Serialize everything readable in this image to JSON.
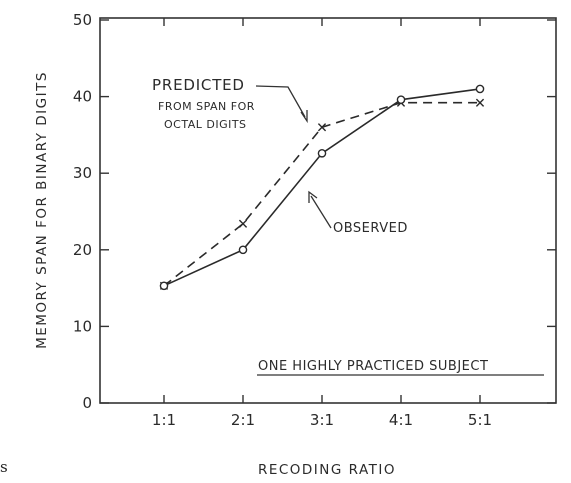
{
  "chart_data": {
    "type": "line",
    "xlabel": "RECODING RATIO",
    "ylabel": "MEMORY SPAN FOR BINARY DIGITS",
    "categories": [
      "1:1",
      "2:1",
      "3:1",
      "4:1",
      "5:1"
    ],
    "ylim": [
      0,
      50
    ],
    "yticks": [
      0,
      10,
      20,
      30,
      40,
      50
    ],
    "grid": false,
    "series": [
      {
        "name": "OBSERVED",
        "values": [
          15.3,
          20.0,
          32.6,
          39.6,
          41.0
        ],
        "marker": "circle",
        "line": "solid"
      },
      {
        "name": "PREDICTED",
        "values": [
          15.3,
          23.4,
          36.0,
          39.2,
          39.2
        ],
        "marker": "x",
        "line": "dashed"
      }
    ],
    "annotations": {
      "predicted_line1": "PREDICTED",
      "predicted_line2": "FROM SPAN FOR",
      "predicted_line3": "OCTAL DIGITS",
      "observed": "OBSERVED",
      "subject": "ONE HIGHLY PRACTICED SUBJECT"
    },
    "stray_text": "s"
  }
}
